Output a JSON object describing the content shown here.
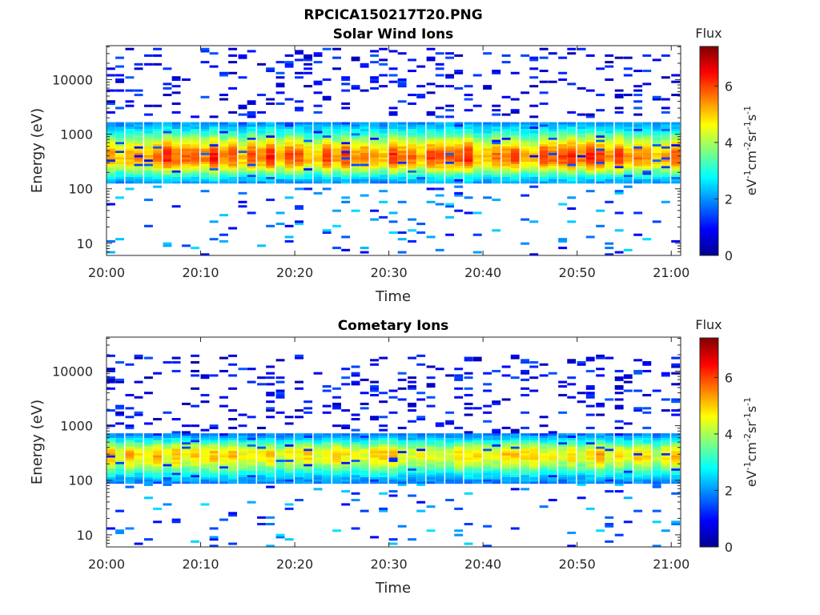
{
  "figure_title": "RPCICA150217T20.PNG",
  "chart_data": [
    {
      "type": "heatmap",
      "title": "Solar Wind Ions",
      "xlabel": "Time",
      "ylabel": "Energy (eV)",
      "x_ticks": [
        "20:00",
        "20:10",
        "20:20",
        "20:30",
        "20:40",
        "20:50",
        "21:00"
      ],
      "x_range_minutes": [
        0,
        61
      ],
      "y_scale": "log",
      "y_ticks": [
        "10",
        "100",
        "1000",
        "10000"
      ],
      "y_range_ev": [
        6,
        42000
      ],
      "colorbar": {
        "title": "Flux",
        "label": "eV-1cm-2sr-1s-1",
        "ticks": [
          "0",
          "2",
          "4",
          "6"
        ],
        "range": [
          0,
          7.4
        ]
      },
      "grid": false,
      "spectrum": {
        "peak_energy_ev": 380,
        "core_energy_range_ev": [
          130,
          1600
        ],
        "peak_flux": 4.8,
        "sweep_period_minutes": 2.0,
        "high_energy_sparse_range_ev": [
          2000,
          40000
        ],
        "low_energy_sparse_range_ev": [
          6,
          120
        ]
      }
    },
    {
      "type": "heatmap",
      "title": "Cometary Ions",
      "xlabel": "Time",
      "ylabel": "Energy (eV)",
      "x_ticks": [
        "20:00",
        "20:10",
        "20:20",
        "20:30",
        "20:40",
        "20:50",
        "21:00"
      ],
      "x_range_minutes": [
        0,
        61
      ],
      "y_scale": "log",
      "y_ticks": [
        "10",
        "100",
        "1000",
        "10000"
      ],
      "y_range_ev": [
        6,
        42000
      ],
      "colorbar": {
        "title": "Flux",
        "label": "eV-1cm-2sr-1s-1",
        "ticks": [
          "0",
          "2",
          "4",
          "6"
        ],
        "range": [
          0,
          7.4
        ]
      },
      "grid": false,
      "spectrum": {
        "peak_energy_ev": 300,
        "core_energy_range_ev": [
          90,
          700
        ],
        "peak_flux": 3.8,
        "sweep_period_minutes": 2.0,
        "high_energy_sparse_range_ev": [
          700,
          20000
        ],
        "low_energy_sparse_range_ev": [
          6,
          90
        ]
      }
    }
  ]
}
